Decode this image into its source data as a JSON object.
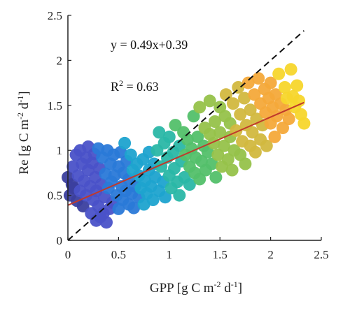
{
  "chart_data": {
    "type": "scatter",
    "title": "",
    "xlabel": "GPP [g C m-2 d-1]",
    "ylabel": "Re [g C m-2 d-1]",
    "xlim": [
      0,
      2.5
    ],
    "ylim": [
      0,
      2.5
    ],
    "xticks": [
      "0",
      "0.5",
      "1",
      "1.5",
      "2",
      "2.5"
    ],
    "yticks": [
      "0",
      "0.5",
      "1",
      "1.5",
      "2",
      "2.5"
    ],
    "grid": false,
    "annotations": {
      "equation": "y = 0.49x+0.39",
      "r2": "R2 = 0.63"
    },
    "regression_line": {
      "slope": 0.49,
      "intercept": 0.39,
      "x_range": [
        0,
        2.33
      ],
      "color": "#c0392b"
    },
    "one_to_one_line": {
      "slope": 1,
      "intercept": 0,
      "x_range": [
        0,
        2.33
      ],
      "style": "dashed",
      "color": "#111111"
    },
    "colormap": [
      "#3b3f9e",
      "#4a52c8",
      "#2a79d8",
      "#1da3cf",
      "#2ab7a6",
      "#53c06a",
      "#96c24a",
      "#d2b83f",
      "#f4a93a",
      "#f7d62c"
    ],
    "points": [
      [
        0.0,
        0.7
      ],
      [
        0.02,
        0.5
      ],
      [
        0.04,
        0.62
      ],
      [
        0.05,
        0.82
      ],
      [
        0.06,
        0.58
      ],
      [
        0.08,
        0.95
      ],
      [
        0.09,
        0.44
      ],
      [
        0.1,
        0.72
      ],
      [
        0.12,
        0.55
      ],
      [
        0.12,
        1.0
      ],
      [
        0.14,
        0.85
      ],
      [
        0.15,
        0.38
      ],
      [
        0.16,
        0.66
      ],
      [
        0.18,
        0.92
      ],
      [
        0.18,
        0.5
      ],
      [
        0.2,
        0.78
      ],
      [
        0.2,
        1.04
      ],
      [
        0.22,
        0.6
      ],
      [
        0.23,
        0.3
      ],
      [
        0.24,
        0.86
      ],
      [
        0.25,
        0.45
      ],
      [
        0.26,
        0.96
      ],
      [
        0.27,
        0.7
      ],
      [
        0.28,
        0.22
      ],
      [
        0.28,
        0.55
      ],
      [
        0.3,
        1.02
      ],
      [
        0.3,
        0.38
      ],
      [
        0.31,
        0.8
      ],
      [
        0.32,
        0.26
      ],
      [
        0.33,
        0.62
      ],
      [
        0.34,
        0.92
      ],
      [
        0.35,
        0.3
      ],
      [
        0.36,
        0.48
      ],
      [
        0.37,
        0.74
      ],
      [
        0.38,
        0.2
      ],
      [
        0.39,
        1.0
      ],
      [
        0.4,
        0.58
      ],
      [
        0.41,
        0.35
      ],
      [
        0.42,
        0.85
      ],
      [
        0.43,
        0.65
      ],
      [
        0.44,
        0.42
      ],
      [
        0.45,
        0.95
      ],
      [
        0.46,
        0.72
      ],
      [
        0.48,
        0.5
      ],
      [
        0.5,
        0.82
      ],
      [
        0.5,
        0.35
      ],
      [
        0.52,
        0.98
      ],
      [
        0.53,
        0.6
      ],
      [
        0.54,
        0.45
      ],
      [
        0.55,
        0.75
      ],
      [
        0.56,
        1.08
      ],
      [
        0.57,
        0.55
      ],
      [
        0.58,
        0.88
      ],
      [
        0.6,
        0.4
      ],
      [
        0.6,
        0.68
      ],
      [
        0.62,
        0.95
      ],
      [
        0.63,
        0.52
      ],
      [
        0.64,
        0.78
      ],
      [
        0.65,
        0.36
      ],
      [
        0.66,
        0.6
      ],
      [
        0.68,
        0.85
      ],
      [
        0.7,
        0.48
      ],
      [
        0.7,
        0.72
      ],
      [
        0.72,
        0.58
      ],
      [
        0.74,
        0.9
      ],
      [
        0.75,
        0.4
      ],
      [
        0.76,
        0.66
      ],
      [
        0.78,
        0.52
      ],
      [
        0.8,
        0.78
      ],
      [
        0.8,
        0.98
      ],
      [
        0.82,
        0.6
      ],
      [
        0.84,
        0.45
      ],
      [
        0.85,
        0.85
      ],
      [
        0.86,
        0.7
      ],
      [
        0.88,
        1.0
      ],
      [
        0.9,
        0.55
      ],
      [
        0.9,
        1.2
      ],
      [
        0.92,
        0.82
      ],
      [
        0.94,
        0.65
      ],
      [
        0.95,
        1.08
      ],
      [
        0.96,
        0.48
      ],
      [
        0.98,
        0.92
      ],
      [
        1.0,
        0.72
      ],
      [
        1.0,
        1.15
      ],
      [
        1.02,
        0.58
      ],
      [
        1.04,
        0.98
      ],
      [
        1.05,
        0.8
      ],
      [
        1.06,
        1.28
      ],
      [
        1.08,
        0.65
      ],
      [
        1.1,
        1.05
      ],
      [
        1.1,
        0.5
      ],
      [
        1.12,
        0.88
      ],
      [
        1.14,
        1.2
      ],
      [
        1.15,
        0.7
      ],
      [
        1.16,
        0.95
      ],
      [
        1.18,
        1.12
      ],
      [
        1.2,
        0.62
      ],
      [
        1.2,
        0.82
      ],
      [
        1.22,
        1.02
      ],
      [
        1.24,
        1.38
      ],
      [
        1.25,
        0.75
      ],
      [
        1.26,
        0.92
      ],
      [
        1.28,
        1.15
      ],
      [
        1.3,
        0.68
      ],
      [
        1.3,
        1.48
      ],
      [
        1.32,
        0.88
      ],
      [
        1.34,
        1.05
      ],
      [
        1.35,
        1.25
      ],
      [
        1.36,
        0.78
      ],
      [
        1.38,
        0.98
      ],
      [
        1.4,
        1.18
      ],
      [
        1.4,
        1.55
      ],
      [
        1.42,
        0.85
      ],
      [
        1.44,
        1.08
      ],
      [
        1.45,
        1.32
      ],
      [
        1.46,
        0.7
      ],
      [
        1.48,
        0.95
      ],
      [
        1.5,
        1.2
      ],
      [
        1.5,
        1.48
      ],
      [
        1.52,
        0.82
      ],
      [
        1.54,
        1.05
      ],
      [
        1.55,
        1.38
      ],
      [
        1.56,
        1.62
      ],
      [
        1.58,
        0.9
      ],
      [
        1.6,
        1.15
      ],
      [
        1.6,
        1.3
      ],
      [
        1.62,
        0.78
      ],
      [
        1.63,
        1.52
      ],
      [
        1.64,
        1.0
      ],
      [
        1.66,
        1.22
      ],
      [
        1.68,
        1.7
      ],
      [
        1.7,
        0.95
      ],
      [
        1.7,
        1.4
      ],
      [
        1.72,
        1.1
      ],
      [
        1.74,
        1.58
      ],
      [
        1.75,
        0.85
      ],
      [
        1.76,
        1.28
      ],
      [
        1.78,
        1.75
      ],
      [
        1.8,
        1.05
      ],
      [
        1.8,
        1.45
      ],
      [
        1.82,
        1.2
      ],
      [
        1.84,
        1.62
      ],
      [
        1.85,
        0.98
      ],
      [
        1.86,
        1.35
      ],
      [
        1.88,
        1.8
      ],
      [
        1.9,
        1.12
      ],
      [
        1.9,
        1.52
      ],
      [
        1.92,
        1.28
      ],
      [
        1.94,
        1.68
      ],
      [
        1.95,
        1.42
      ],
      [
        1.96,
        1.05
      ],
      [
        1.98,
        1.58
      ],
      [
        2.0,
        1.3
      ],
      [
        2.0,
        1.75
      ],
      [
        2.02,
        1.48
      ],
      [
        2.04,
        1.15
      ],
      [
        2.05,
        1.62
      ],
      [
        2.06,
        1.38
      ],
      [
        2.08,
        1.85
      ],
      [
        2.1,
        1.52
      ],
      [
        2.12,
        1.25
      ],
      [
        2.14,
        1.7
      ],
      [
        2.15,
        1.45
      ],
      [
        2.16,
        1.58
      ],
      [
        2.18,
        1.35
      ],
      [
        2.2,
        1.9
      ],
      [
        2.22,
        1.6
      ],
      [
        2.24,
        1.48
      ],
      [
        2.26,
        1.72
      ],
      [
        2.28,
        1.55
      ],
      [
        2.3,
        1.4
      ],
      [
        2.33,
        1.3
      ]
    ]
  }
}
